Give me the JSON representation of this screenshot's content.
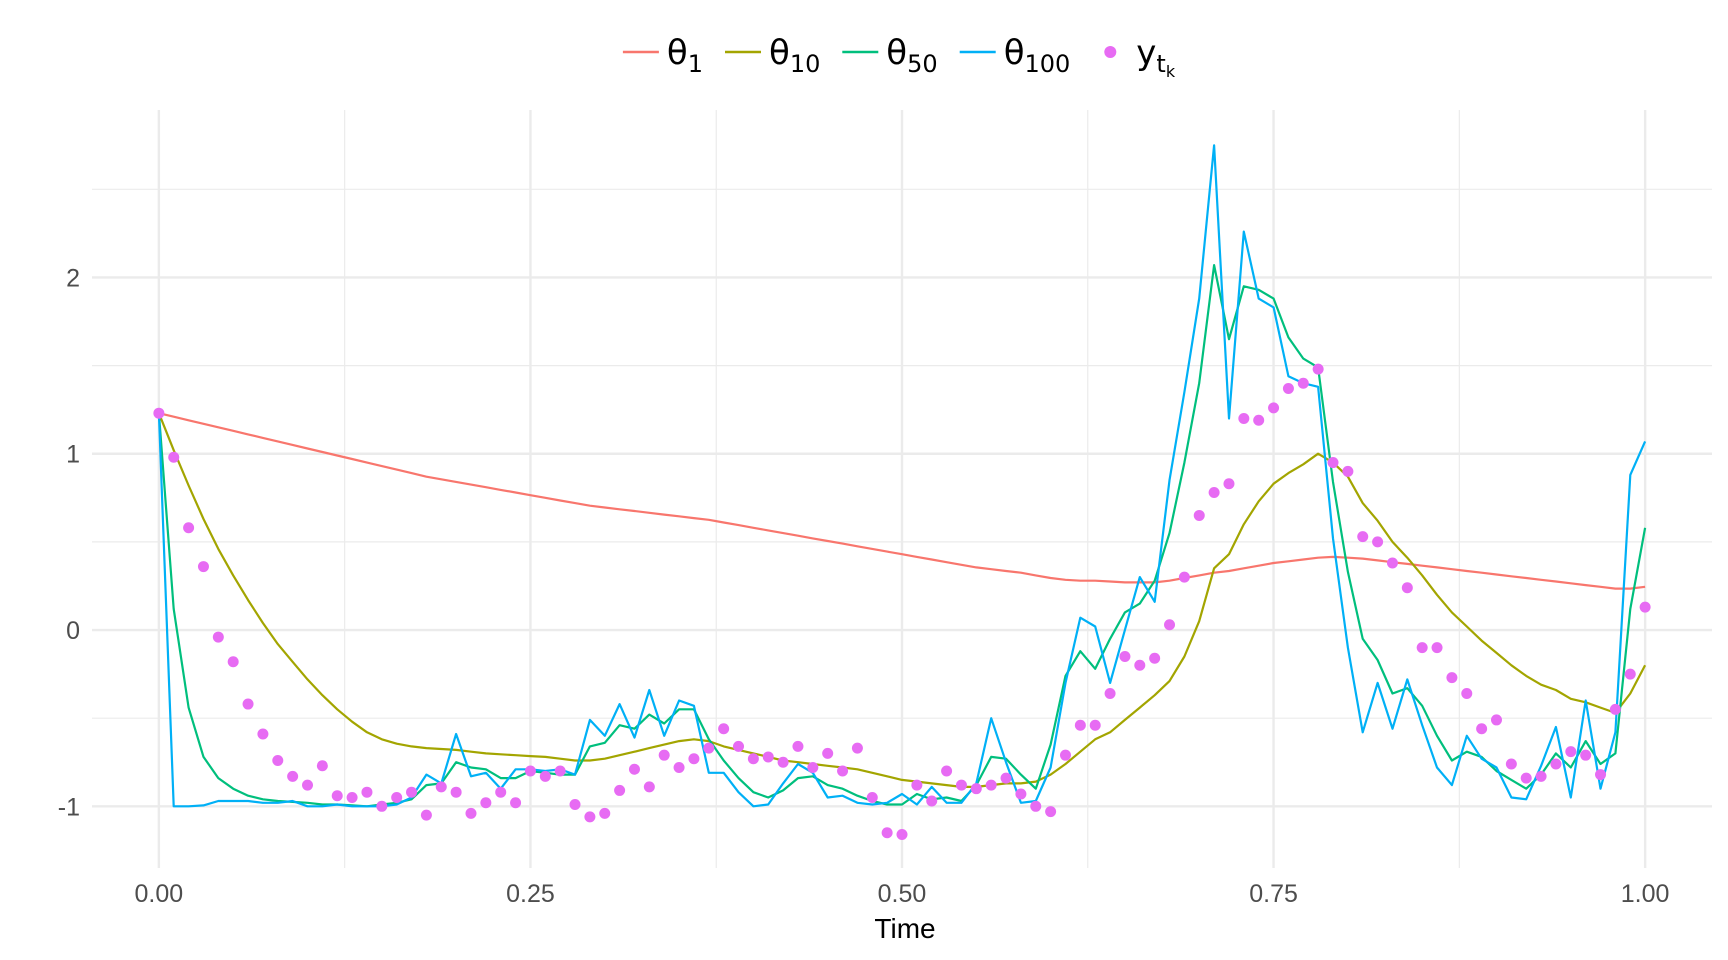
{
  "chart_data": {
    "type": "line",
    "title": "",
    "xlabel": "Time",
    "ylabel": "",
    "xlim": [
      -0.045,
      1.045
    ],
    "ylim": [
      -1.35,
      2.95
    ],
    "x_ticks": [
      0,
      0.25,
      0.5,
      0.75,
      1
    ],
    "x_tick_labels": [
      "0.00",
      "0.25",
      "0.50",
      "0.75",
      "1.00"
    ],
    "y_ticks": [
      -1,
      0,
      1,
      2
    ],
    "y_tick_labels": [
      "-1",
      "0",
      "1",
      "2"
    ],
    "grid": true,
    "legend_position": "top",
    "x": [
      0,
      0.01,
      0.02,
      0.03,
      0.04,
      0.05,
      0.06,
      0.07,
      0.08,
      0.09,
      0.1,
      0.11,
      0.12,
      0.13,
      0.14,
      0.15,
      0.16,
      0.17,
      0.18,
      0.19,
      0.2,
      0.21,
      0.22,
      0.23,
      0.24,
      0.25,
      0.26,
      0.27,
      0.28,
      0.29,
      0.3,
      0.31,
      0.32,
      0.33,
      0.34,
      0.35,
      0.36,
      0.37,
      0.38,
      0.39,
      0.4,
      0.41,
      0.42,
      0.43,
      0.44,
      0.45,
      0.46,
      0.47,
      0.48,
      0.49,
      0.5,
      0.51,
      0.52,
      0.53,
      0.54,
      0.55,
      0.56,
      0.57,
      0.58,
      0.59,
      0.6,
      0.61,
      0.62,
      0.63,
      0.64,
      0.65,
      0.66,
      0.67,
      0.68,
      0.69,
      0.7,
      0.71,
      0.72,
      0.73,
      0.74,
      0.75,
      0.76,
      0.77,
      0.78,
      0.79,
      0.8,
      0.81,
      0.82,
      0.83,
      0.84,
      0.85,
      0.86,
      0.87,
      0.88,
      0.89,
      0.9,
      0.91,
      0.92,
      0.93,
      0.94,
      0.95,
      0.96,
      0.97,
      0.98,
      0.99,
      1.0
    ],
    "series": [
      {
        "name": "θ1",
        "name_base": "θ",
        "name_sub": "1",
        "color": "#F8766D",
        "kind": "line",
        "values": [
          1.23,
          1.21,
          1.19,
          1.17,
          1.15,
          1.13,
          1.11,
          1.09,
          1.07,
          1.05,
          1.03,
          1.01,
          0.99,
          0.97,
          0.95,
          0.93,
          0.91,
          0.89,
          0.87,
          0.855,
          0.84,
          0.825,
          0.81,
          0.795,
          0.78,
          0.765,
          0.75,
          0.735,
          0.72,
          0.705,
          0.695,
          0.685,
          0.675,
          0.665,
          0.655,
          0.645,
          0.635,
          0.625,
          0.61,
          0.595,
          0.58,
          0.565,
          0.55,
          0.535,
          0.52,
          0.505,
          0.49,
          0.475,
          0.46,
          0.445,
          0.43,
          0.415,
          0.4,
          0.385,
          0.37,
          0.355,
          0.345,
          0.335,
          0.325,
          0.31,
          0.295,
          0.285,
          0.28,
          0.28,
          0.275,
          0.27,
          0.27,
          0.27,
          0.28,
          0.295,
          0.31,
          0.325,
          0.335,
          0.35,
          0.365,
          0.38,
          0.39,
          0.4,
          0.41,
          0.415,
          0.41,
          0.405,
          0.395,
          0.385,
          0.375,
          0.365,
          0.355,
          0.345,
          0.335,
          0.325,
          0.315,
          0.305,
          0.295,
          0.285,
          0.275,
          0.265,
          0.255,
          0.245,
          0.235,
          0.235,
          0.245
        ]
      },
      {
        "name": "θ10",
        "name_base": "θ",
        "name_sub": "10",
        "color": "#A3A500",
        "kind": "line",
        "values": [
          1.23,
          1.02,
          0.82,
          0.63,
          0.46,
          0.31,
          0.17,
          0.04,
          -0.08,
          -0.18,
          -0.28,
          -0.37,
          -0.45,
          -0.52,
          -0.58,
          -0.62,
          -0.645,
          -0.66,
          -0.67,
          -0.675,
          -0.68,
          -0.69,
          -0.7,
          -0.705,
          -0.71,
          -0.715,
          -0.72,
          -0.73,
          -0.74,
          -0.74,
          -0.73,
          -0.71,
          -0.69,
          -0.67,
          -0.65,
          -0.63,
          -0.62,
          -0.63,
          -0.66,
          -0.68,
          -0.7,
          -0.72,
          -0.74,
          -0.75,
          -0.76,
          -0.77,
          -0.78,
          -0.79,
          -0.81,
          -0.83,
          -0.85,
          -0.86,
          -0.87,
          -0.88,
          -0.89,
          -0.89,
          -0.88,
          -0.87,
          -0.87,
          -0.86,
          -0.82,
          -0.76,
          -0.69,
          -0.62,
          -0.58,
          -0.51,
          -0.44,
          -0.37,
          -0.29,
          -0.15,
          0.05,
          0.35,
          0.43,
          0.6,
          0.73,
          0.83,
          0.89,
          0.94,
          1.0,
          0.95,
          0.87,
          0.72,
          0.62,
          0.5,
          0.41,
          0.31,
          0.2,
          0.1,
          0.02,
          -0.06,
          -0.13,
          -0.2,
          -0.26,
          -0.31,
          -0.34,
          -0.39,
          -0.41,
          -0.44,
          -0.47,
          -0.36,
          -0.2
        ]
      },
      {
        "name": "θ50",
        "name_base": "θ",
        "name_sub": "50",
        "color": "#00BF7D",
        "kind": "line",
        "values": [
          1.23,
          0.12,
          -0.44,
          -0.72,
          -0.84,
          -0.9,
          -0.94,
          -0.96,
          -0.97,
          -0.975,
          -0.98,
          -0.99,
          -0.99,
          -0.995,
          -1.0,
          -0.99,
          -0.98,
          -0.96,
          -0.88,
          -0.87,
          -0.75,
          -0.78,
          -0.79,
          -0.84,
          -0.84,
          -0.8,
          -0.81,
          -0.82,
          -0.82,
          -0.66,
          -0.64,
          -0.54,
          -0.56,
          -0.48,
          -0.53,
          -0.45,
          -0.45,
          -0.62,
          -0.74,
          -0.84,
          -0.92,
          -0.95,
          -0.91,
          -0.84,
          -0.83,
          -0.88,
          -0.9,
          -0.94,
          -0.97,
          -0.99,
          -0.99,
          -0.93,
          -0.96,
          -0.95,
          -0.97,
          -0.88,
          -0.72,
          -0.73,
          -0.82,
          -0.9,
          -0.65,
          -0.26,
          -0.12,
          -0.22,
          -0.05,
          0.1,
          0.15,
          0.28,
          0.55,
          0.95,
          1.4,
          2.07,
          1.65,
          1.95,
          1.93,
          1.88,
          1.66,
          1.54,
          1.49,
          0.84,
          0.33,
          -0.05,
          -0.17,
          -0.36,
          -0.33,
          -0.43,
          -0.6,
          -0.74,
          -0.69,
          -0.72,
          -0.8,
          -0.85,
          -0.9,
          -0.82,
          -0.7,
          -0.78,
          -0.63,
          -0.76,
          -0.7,
          0.12,
          0.58
        ]
      },
      {
        "name": "θ100",
        "name_base": "θ",
        "name_sub": "100",
        "color": "#00B0F6",
        "kind": "line",
        "values": [
          1.23,
          -1.0,
          -1.0,
          -0.995,
          -0.97,
          -0.97,
          -0.97,
          -0.98,
          -0.98,
          -0.97,
          -1.0,
          -1.0,
          -0.99,
          -1.0,
          -1.0,
          -1.0,
          -0.99,
          -0.95,
          -0.82,
          -0.87,
          -0.59,
          -0.83,
          -0.81,
          -0.9,
          -0.79,
          -0.79,
          -0.8,
          -0.79,
          -0.82,
          -0.51,
          -0.6,
          -0.42,
          -0.61,
          -0.34,
          -0.6,
          -0.4,
          -0.43,
          -0.81,
          -0.81,
          -0.92,
          -1.0,
          -0.99,
          -0.87,
          -0.76,
          -0.81,
          -0.95,
          -0.94,
          -0.98,
          -0.99,
          -0.98,
          -0.93,
          -0.99,
          -0.89,
          -0.98,
          -0.98,
          -0.87,
          -0.5,
          -0.75,
          -0.98,
          -0.97,
          -0.78,
          -0.3,
          0.07,
          0.02,
          -0.3,
          0.0,
          0.3,
          0.16,
          0.85,
          1.35,
          1.88,
          2.75,
          1.2,
          2.26,
          1.88,
          1.83,
          1.44,
          1.4,
          1.38,
          0.52,
          -0.1,
          -0.58,
          -0.3,
          -0.56,
          -0.28,
          -0.54,
          -0.78,
          -0.88,
          -0.6,
          -0.73,
          -0.78,
          -0.95,
          -0.96,
          -0.77,
          -0.55,
          -0.95,
          -0.4,
          -0.9,
          -0.58,
          0.88,
          1.07
        ]
      },
      {
        "name": "y",
        "name_base": "y",
        "name_sub": "t",
        "name_sub2": "k",
        "color": "#E76BF3",
        "kind": "points",
        "values": [
          1.23,
          0.98,
          0.58,
          0.36,
          -0.04,
          -0.18,
          -0.42,
          -0.59,
          -0.74,
          -0.83,
          -0.88,
          -0.77,
          -0.94,
          -0.95,
          -0.92,
          -1.0,
          -0.95,
          -0.92,
          -1.05,
          -0.89,
          -0.92,
          -1.04,
          -0.98,
          -0.92,
          -0.98,
          -0.8,
          -0.83,
          -0.8,
          -0.99,
          -1.06,
          -1.04,
          -0.91,
          -0.79,
          -0.89,
          -0.71,
          -0.78,
          -0.73,
          -0.67,
          -0.56,
          -0.66,
          -0.73,
          -0.72,
          -0.75,
          -0.66,
          -0.78,
          -0.7,
          -0.8,
          -0.67,
          -0.95,
          -1.15,
          -1.16,
          -0.88,
          -0.97,
          -0.8,
          -0.88,
          -0.9,
          -0.88,
          -0.84,
          -0.93,
          -1.0,
          -1.03,
          -0.71,
          -0.54,
          -0.54,
          -0.36,
          -0.15,
          -0.2,
          -0.16,
          0.03,
          0.3,
          0.65,
          0.78,
          0.83,
          1.2,
          1.19,
          1.26,
          1.37,
          1.4,
          1.48,
          0.95,
          0.9,
          0.53,
          0.5,
          0.38,
          0.24,
          -0.1,
          -0.1,
          -0.27,
          -0.36,
          -0.56,
          -0.51,
          -0.76,
          -0.84,
          -0.83,
          -0.76,
          -0.69,
          -0.71,
          -0.82,
          -0.45,
          -0.25,
          0.13
        ]
      }
    ]
  }
}
